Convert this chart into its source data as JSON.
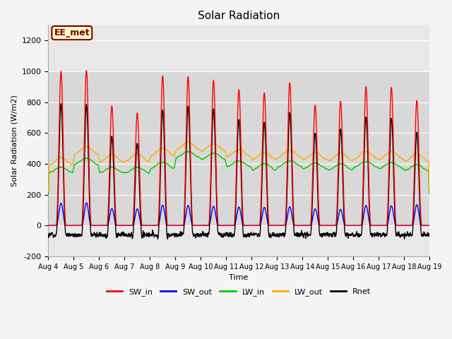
{
  "title": "Solar Radiation",
  "xlabel": "Time",
  "ylabel": "Solar Radiation (W/m2)",
  "ylim": [
    -200,
    1300
  ],
  "yticks": [
    -200,
    0,
    200,
    400,
    600,
    800,
    1000,
    1200
  ],
  "start_day": 4,
  "end_day": 19,
  "n_days": 15,
  "points_per_day": 96,
  "colors": {
    "SW_in": "#ff0000",
    "SW_out": "#0000ff",
    "LW_in": "#00cc00",
    "LW_out": "#ffaa00",
    "Rnet": "#000000"
  },
  "SW_in_peaks": [
    1000,
    1005,
    775,
    730,
    970,
    965,
    940,
    880,
    860,
    925,
    780,
    805,
    900,
    895,
    810
  ],
  "SW_out_peaks": [
    145,
    148,
    110,
    108,
    132,
    130,
    125,
    120,
    118,
    122,
    108,
    105,
    130,
    128,
    135
  ],
  "LW_in_values": [
    340,
    395,
    340,
    340,
    370,
    440,
    430,
    380,
    360,
    380,
    365,
    360,
    375,
    370,
    355
  ],
  "LW_out_values": [
    390,
    460,
    410,
    415,
    450,
    490,
    480,
    445,
    425,
    440,
    425,
    420,
    430,
    430,
    415
  ],
  "Rnet_night": -60,
  "fig_bg": "#f4f4f4",
  "plot_bg_outer": "#e8e8e8",
  "plot_bg_inner": "#d8d8d8",
  "annotation_text": "EE_met",
  "annotation_bg": "#ffffcc",
  "annotation_border": "#800000",
  "linewidth": 1.0
}
